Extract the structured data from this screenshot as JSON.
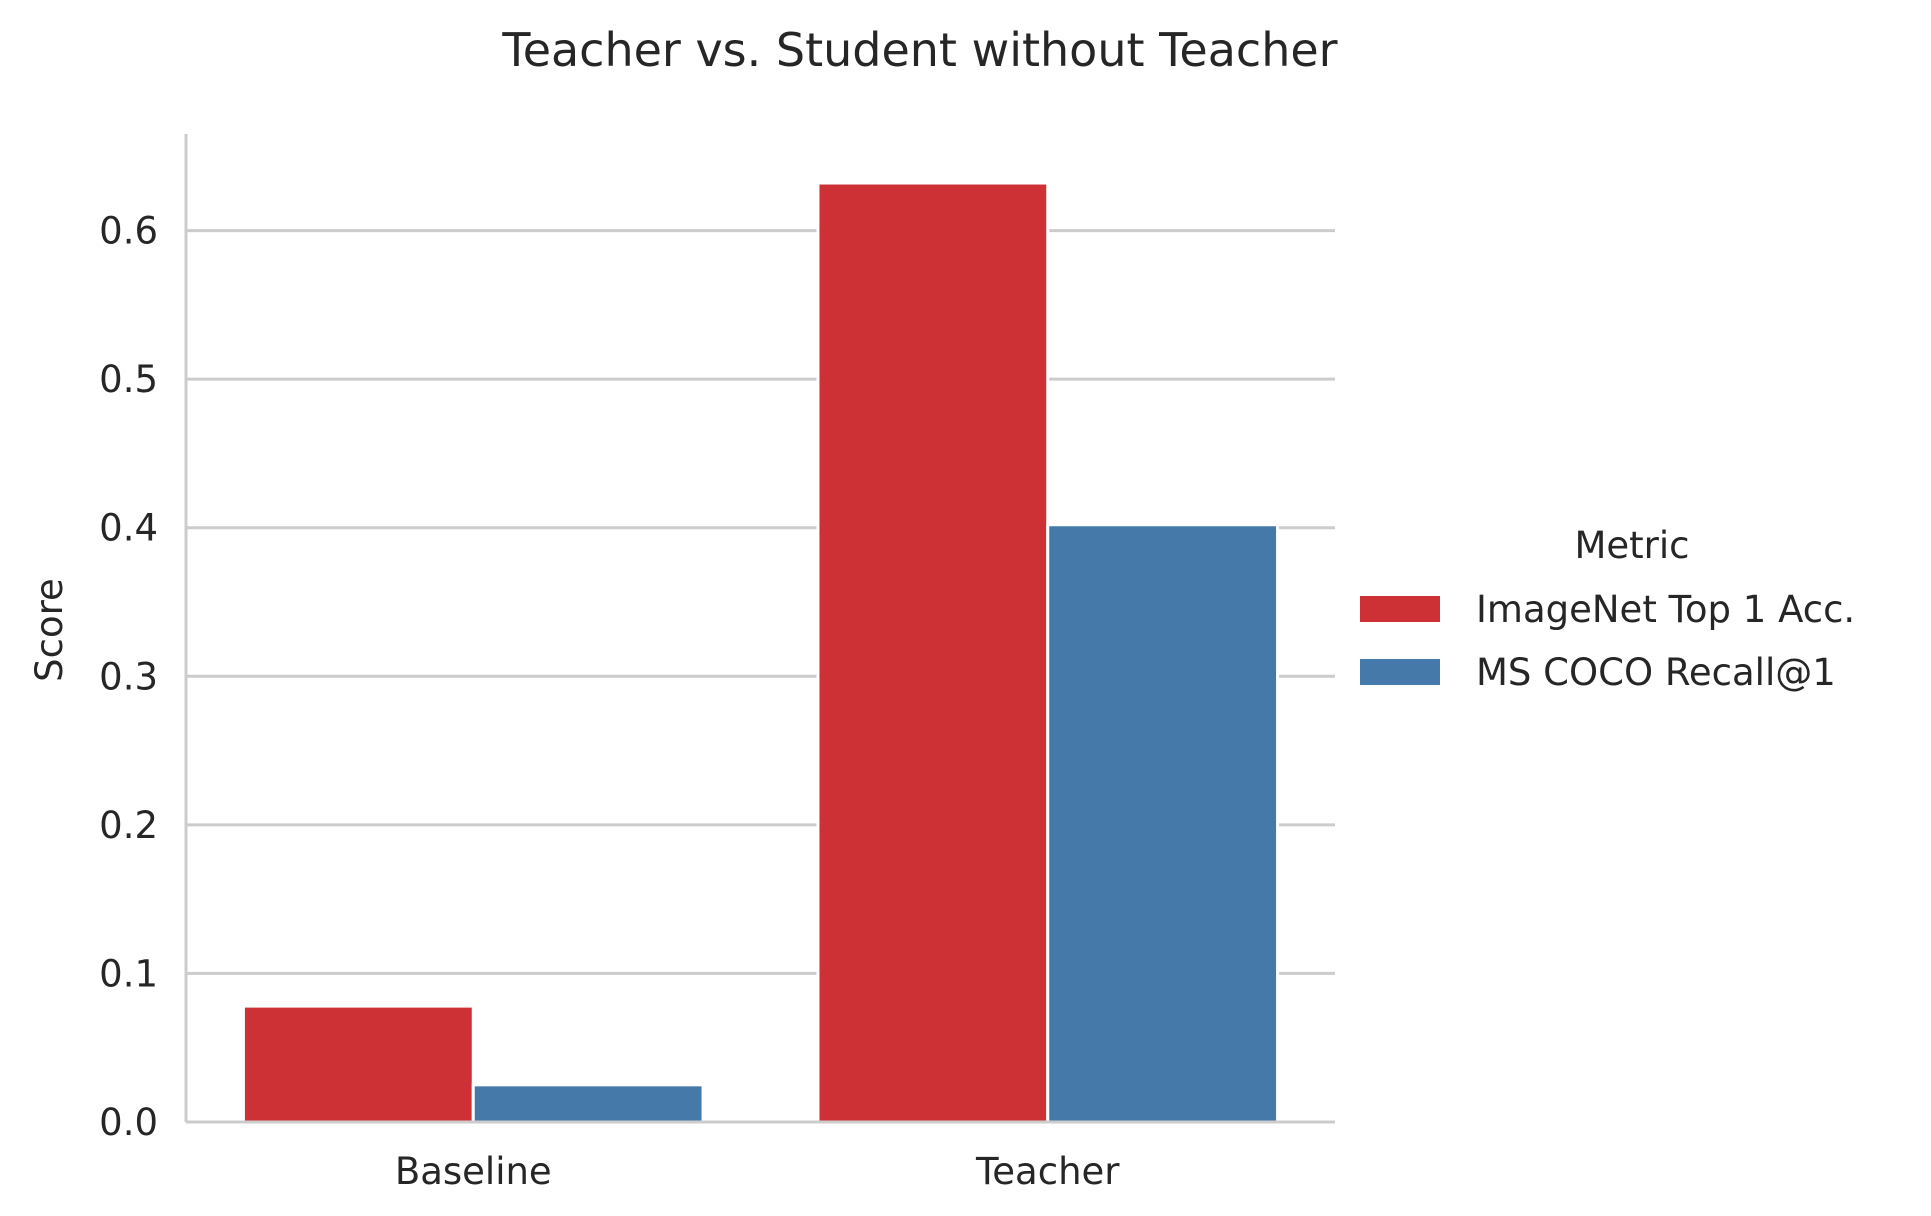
{
  "chart_data": {
    "type": "bar",
    "title": "Teacher vs. Student without Teacher",
    "xlabel": "",
    "ylabel": "Score",
    "categories": [
      "Baseline",
      "Teacher"
    ],
    "series": [
      {
        "name": "ImageNet Top 1 Acc.",
        "color": "#ce3135",
        "values": [
          0.078,
          0.632
        ]
      },
      {
        "name": "MS COCO Recall@1",
        "color": "#4479aa",
        "values": [
          0.025,
          0.402
        ]
      }
    ],
    "ylim": [
      0,
      0.665
    ],
    "yticks": [
      0.0,
      0.1,
      0.2,
      0.3,
      0.4,
      0.5,
      0.6
    ],
    "ytick_labels": [
      "0.0",
      "0.1",
      "0.2",
      "0.3",
      "0.4",
      "0.5",
      "0.6"
    ],
    "grid": true,
    "legend": {
      "title": "Metric",
      "placement": "right"
    }
  }
}
